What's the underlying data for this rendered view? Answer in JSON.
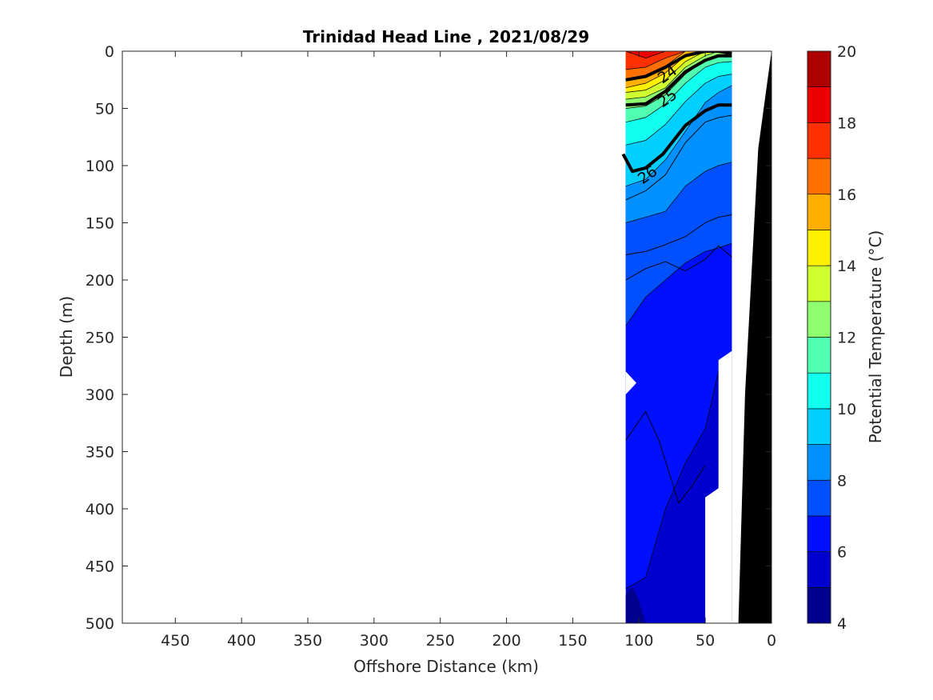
{
  "chart_data": {
    "type": "heatmap",
    "subtype": "filled-contour-section",
    "title": "Trinidad Head Line , 2021/08/29",
    "xlabel": "Offshore Distance (km)",
    "ylabel": "Depth (m)",
    "xlim": [
      490,
      0
    ],
    "ylim": [
      0,
      500
    ],
    "x_reversed": true,
    "y_reversed": true,
    "xticks": [
      450,
      400,
      350,
      300,
      250,
      200,
      150,
      100,
      50,
      0
    ],
    "yticks": [
      0,
      50,
      100,
      150,
      200,
      250,
      300,
      350,
      400,
      450,
      500
    ],
    "colorbar": {
      "label": "Potential Temperature (°C)",
      "range": [
        4,
        20
      ],
      "ticks": [
        4,
        6,
        8,
        10,
        12,
        14,
        16,
        18,
        20
      ],
      "levels": [
        4,
        5,
        6,
        7,
        8,
        9,
        10,
        11,
        12,
        13,
        14,
        15,
        16,
        17,
        18,
        19,
        20
      ],
      "colors": [
        "#00008f",
        "#0000cf",
        "#0010ff",
        "#0050ff",
        "#0090ff",
        "#00cfff",
        "#10ffef",
        "#50ffaf",
        "#90ff6f",
        "#cfff30",
        "#ffef00",
        "#ffaf00",
        "#ff7000",
        "#ff3000",
        "#ef0000",
        "#af0000"
      ]
    },
    "data_extent_km": [
      110,
      30
    ],
    "stations_km": [
      110,
      95,
      80,
      65,
      50,
      35,
      30
    ],
    "temperature_bands": [
      {
        "tmin": 6,
        "depth_km": [
          [
            110,
            470
          ],
          [
            95,
            460
          ],
          [
            80,
            400
          ],
          [
            65,
            360
          ],
          [
            50,
            330
          ],
          [
            40,
            280
          ],
          [
            30,
            262
          ]
        ]
      },
      {
        "tmin": 7,
        "depth_km": [
          [
            110,
            240
          ],
          [
            95,
            215
          ],
          [
            80,
            200
          ],
          [
            65,
            185
          ],
          [
            50,
            175
          ],
          [
            40,
            172
          ],
          [
            30,
            168
          ]
        ]
      },
      {
        "tmin": 8,
        "depth_km": [
          [
            110,
            150
          ],
          [
            95,
            145
          ],
          [
            80,
            140
          ],
          [
            65,
            118
          ],
          [
            50,
            105
          ],
          [
            40,
            100
          ],
          [
            30,
            97
          ]
        ]
      },
      {
        "tmin": 9,
        "depth_km": [
          [
            110,
            118
          ],
          [
            95,
            112
          ],
          [
            80,
            95
          ],
          [
            65,
            70
          ],
          [
            50,
            45
          ],
          [
            40,
            36
          ],
          [
            30,
            30
          ]
        ]
      },
      {
        "tmin": 10,
        "depth_km": [
          [
            110,
            82
          ],
          [
            95,
            78
          ],
          [
            80,
            64
          ],
          [
            65,
            44
          ],
          [
            50,
            28
          ],
          [
            40,
            22
          ],
          [
            30,
            20
          ]
        ]
      },
      {
        "tmin": 11,
        "depth_km": [
          [
            110,
            62
          ],
          [
            95,
            58
          ],
          [
            80,
            46
          ],
          [
            65,
            28
          ],
          [
            50,
            14
          ],
          [
            40,
            10
          ],
          [
            30,
            9
          ]
        ]
      },
      {
        "tmin": 12,
        "depth_km": [
          [
            110,
            50
          ],
          [
            95,
            48
          ],
          [
            80,
            38
          ],
          [
            65,
            20
          ],
          [
            50,
            8
          ],
          [
            40,
            4
          ],
          [
            30,
            2
          ]
        ]
      },
      {
        "tmin": 13,
        "depth_km": [
          [
            110,
            42
          ],
          [
            95,
            40
          ],
          [
            80,
            32
          ],
          [
            65,
            14
          ],
          [
            50,
            4
          ],
          [
            40,
            0
          ],
          [
            30,
            0
          ]
        ]
      },
      {
        "tmin": 14,
        "depth_km": [
          [
            110,
            36
          ],
          [
            95,
            34
          ],
          [
            80,
            25
          ],
          [
            65,
            9
          ],
          [
            50,
            0
          ],
          [
            40,
            0
          ],
          [
            30,
            0
          ]
        ]
      },
      {
        "tmin": 15,
        "depth_km": [
          [
            110,
            32
          ],
          [
            95,
            28
          ],
          [
            80,
            19
          ],
          [
            65,
            4
          ],
          [
            50,
            0
          ],
          [
            40,
            0
          ],
          [
            30,
            0
          ]
        ]
      },
      {
        "tmin": 16,
        "depth_km": [
          [
            110,
            26
          ],
          [
            95,
            23
          ],
          [
            80,
            13
          ],
          [
            65,
            0
          ],
          [
            50,
            0
          ],
          [
            40,
            0
          ],
          [
            30,
            0
          ]
        ]
      },
      {
        "tmin": 17,
        "depth_km": [
          [
            110,
            16
          ],
          [
            95,
            14
          ],
          [
            80,
            6
          ],
          [
            65,
            0
          ],
          [
            50,
            0
          ],
          [
            40,
            0
          ],
          [
            30,
            0
          ]
        ]
      },
      {
        "tmin": 18,
        "depth_km": [
          [
            110,
            0
          ],
          [
            95,
            6
          ],
          [
            80,
            0
          ],
          [
            65,
            0
          ],
          [
            50,
            0
          ],
          [
            40,
            0
          ],
          [
            30,
            0
          ]
        ]
      }
    ],
    "deep_patch_5C": [
      [
        110,
        500
      ],
      [
        110,
        475
      ],
      [
        105,
        468
      ],
      [
        100,
        480
      ],
      [
        95,
        500
      ]
    ],
    "density_contours": [
      {
        "label": "24",
        "points": [
          [
            110,
            25
          ],
          [
            95,
            22
          ],
          [
            80,
            14
          ],
          [
            65,
            4
          ],
          [
            50,
            0
          ],
          [
            40,
            0
          ],
          [
            30,
            2
          ]
        ]
      },
      {
        "label": "25",
        "points": [
          [
            110,
            47
          ],
          [
            95,
            46
          ],
          [
            80,
            35
          ],
          [
            65,
            18
          ],
          [
            50,
            8
          ],
          [
            40,
            4
          ],
          [
            30,
            4
          ]
        ]
      },
      {
        "label": "26",
        "points": [
          [
            112,
            90
          ],
          [
            105,
            105
          ],
          [
            95,
            102
          ],
          [
            82,
            90
          ],
          [
            65,
            65
          ],
          [
            50,
            52
          ],
          [
            40,
            47
          ],
          [
            30,
            47
          ]
        ]
      }
    ],
    "thin_contours": [
      [
        [
          110,
          130
        ],
        [
          95,
          122
        ],
        [
          80,
          108
        ],
        [
          65,
          80
        ],
        [
          50,
          62
        ],
        [
          40,
          58
        ],
        [
          30,
          56
        ]
      ],
      [
        [
          110,
          200
        ],
        [
          95,
          190
        ],
        [
          80,
          184
        ],
        [
          65,
          192
        ],
        [
          50,
          182
        ],
        [
          40,
          170
        ],
        [
          30,
          180
        ]
      ],
      [
        [
          110,
          340
        ],
        [
          95,
          315
        ],
        [
          85,
          340
        ],
        [
          70,
          395
        ],
        [
          60,
          380
        ],
        [
          50,
          362
        ]
      ],
      [
        [
          110,
          178
        ],
        [
          95,
          175
        ],
        [
          82,
          170
        ],
        [
          65,
          162
        ],
        [
          50,
          150
        ],
        [
          40,
          145
        ],
        [
          30,
          143
        ]
      ]
    ],
    "bathymetry": [
      [
        0,
        0
      ],
      [
        10,
        85
      ],
      [
        20,
        300
      ],
      [
        25,
        500
      ],
      [
        0,
        500
      ]
    ],
    "no_data_notches": [
      [
        [
          110,
          280
        ],
        [
          102,
          290
        ],
        [
          110,
          300
        ]
      ],
      [
        [
          40,
          270
        ],
        [
          30,
          262
        ],
        [
          30,
          500
        ],
        [
          50,
          500
        ],
        [
          50,
          390
        ],
        [
          40,
          382
        ]
      ]
    ]
  }
}
